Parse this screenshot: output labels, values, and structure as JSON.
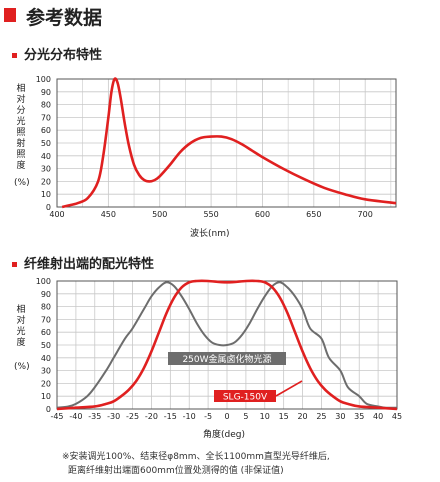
{
  "page": {
    "title": "参考数据"
  },
  "sections": {
    "spectrum": {
      "title": "分光分布特性"
    },
    "distribution": {
      "title": "纤维射出端的配光特性"
    }
  },
  "colors": {
    "accent": "#e02020",
    "gray_series": "#6d6d6d",
    "grid": "#c8c8c8"
  },
  "chart_data": [
    {
      "type": "line",
      "ylabel": "相对分光照射照度",
      "yunit": "(%)",
      "xlabel": "波长(nm)",
      "xlim": [
        400,
        730
      ],
      "ylim": [
        0,
        100
      ],
      "xticks": [
        400,
        450,
        500,
        550,
        600,
        650,
        700
      ],
      "yticks": [
        0,
        10,
        20,
        30,
        40,
        50,
        60,
        70,
        80,
        90,
        100
      ],
      "grid": true,
      "series": [
        {
          "color": "#e02020",
          "x": [
            405,
            410,
            420,
            430,
            440,
            445,
            450,
            453,
            456,
            459,
            462,
            466,
            470,
            475,
            480,
            485,
            490,
            495,
            500,
            510,
            520,
            530,
            540,
            550,
            560,
            570,
            580,
            590,
            600,
            620,
            640,
            660,
            680,
            700,
            730
          ],
          "y": [
            0,
            1,
            3,
            7,
            20,
            40,
            70,
            90,
            100,
            97,
            85,
            65,
            48,
            33,
            25,
            21,
            20,
            21,
            24,
            33,
            43,
            50,
            54,
            55,
            55,
            53,
            49,
            44,
            39,
            30,
            22,
            15,
            10,
            6,
            3
          ]
        }
      ]
    },
    {
      "type": "line",
      "ylabel": "相对光度",
      "yunit": "(%)",
      "xlabel": "角度(deg)",
      "xlim": [
        -45,
        45
      ],
      "ylim": [
        0,
        100
      ],
      "xticks": [
        -45,
        -40,
        -35,
        -30,
        -25,
        -20,
        -15,
        -10,
        -5,
        0,
        5,
        10,
        15,
        20,
        25,
        30,
        35,
        40,
        45
      ],
      "yticks": [
        0,
        10,
        20,
        30,
        40,
        50,
        60,
        70,
        80,
        90,
        100
      ],
      "grid": true,
      "series": [
        {
          "name": "250W金属卤化物光源",
          "color": "#6d6d6d",
          "x": [
            -45,
            -42,
            -40,
            -37,
            -35,
            -32,
            -30,
            -27,
            -25,
            -22,
            -20,
            -18,
            -16,
            -14,
            -12,
            -10,
            -8,
            -6,
            -4,
            -2,
            0,
            2,
            4,
            6,
            8,
            10,
            12,
            14,
            16,
            18,
            20,
            22,
            25,
            27,
            30,
            32,
            35,
            37,
            40,
            42,
            45
          ],
          "y": [
            1,
            2,
            4,
            10,
            17,
            30,
            40,
            55,
            63,
            78,
            88,
            95,
            99,
            96,
            88,
            78,
            67,
            58,
            52,
            50,
            50,
            52,
            58,
            67,
            78,
            88,
            96,
            99,
            95,
            88,
            78,
            63,
            55,
            40,
            30,
            17,
            10,
            4,
            2,
            1,
            1
          ]
        },
        {
          "name": "SLG-150V",
          "color": "#e02020",
          "x": [
            -45,
            -40,
            -35,
            -32,
            -30,
            -28,
            -26,
            -24,
            -22,
            -20,
            -18,
            -16,
            -14,
            -12,
            -10,
            -8,
            -5,
            0,
            5,
            8,
            10,
            12,
            14,
            16,
            18,
            20,
            22,
            24,
            26,
            28,
            30,
            32,
            35,
            40,
            45
          ],
          "y": [
            0,
            1,
            2,
            4,
            6,
            10,
            15,
            22,
            32,
            45,
            60,
            75,
            87,
            95,
            99,
            100,
            100,
            99,
            100,
            100,
            99,
            95,
            87,
            75,
            60,
            45,
            32,
            22,
            15,
            10,
            6,
            4,
            2,
            1,
            0
          ]
        }
      ]
    }
  ],
  "footnote": {
    "line1": "※安装调光100%、结束径φ8mm、全长1100mm直型光导纤维后,",
    "line2": "距离纤维射出端面600mm位置处测得的值 (非保证值)"
  }
}
